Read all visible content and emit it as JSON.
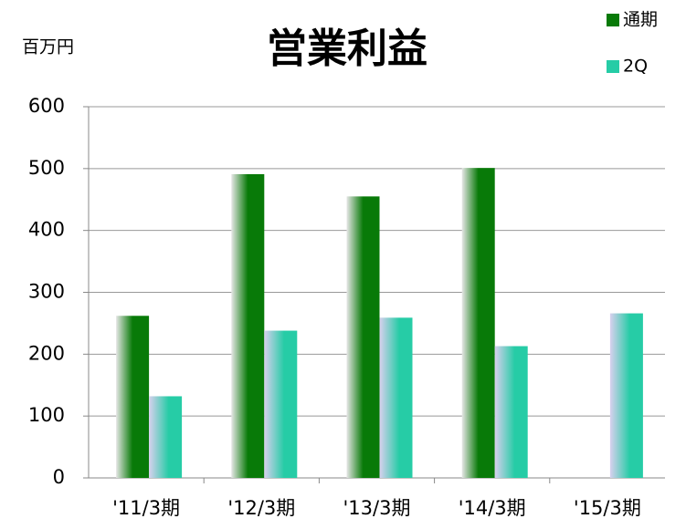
{
  "chart_data": {
    "type": "bar",
    "title": "営業利益",
    "y_label": "百万円",
    "categories": [
      "'11/3期",
      "'12/3期",
      "'13/3期",
      "'14/3期",
      "'15/3期"
    ],
    "series": [
      {
        "name": "通期",
        "color": "#087a08",
        "values": [
          262,
          491,
          455,
          501,
          null
        ]
      },
      {
        "name": "2Q",
        "color": "#26cca6",
        "values": [
          132,
          238,
          259,
          213,
          266
        ]
      }
    ],
    "ylim": [
      0,
      600
    ],
    "yticks": [
      0,
      100,
      200,
      300,
      400,
      500,
      600
    ],
    "grid": true,
    "legend": "upper right"
  }
}
